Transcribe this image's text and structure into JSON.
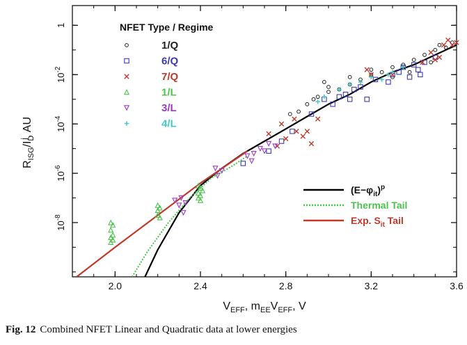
{
  "chart_data": {
    "type": "scatter",
    "xlabel": "V",
    "xlabel_sub": "EFF",
    "xlabel_mid": ", m",
    "xlabel_sub2": "EE",
    "xlabel_mid2": "V",
    "xlabel_sub3": "EFF",
    "xlabel_end": ", V",
    "ylabel": "R",
    "ylabel_sub": "ISG",
    "ylabel_mid": "/I",
    "ylabel_sub2": "D",
    "ylabel_sup": "j",
    "ylabel_end": ", AU",
    "xlim": [
      1.8,
      3.6
    ],
    "ylim_log10": [
      -10.2,
      0.8
    ],
    "log_y": true,
    "x_ticks": [
      "2.0",
      "2.4",
      "2.8",
      "3.2",
      "3.6"
    ],
    "x_tick_values": [
      2.0,
      2.4,
      2.8,
      3.2,
      3.6
    ],
    "y_ticks": [
      {
        "base": "1",
        "exp": ""
      },
      {
        "base": "10",
        "exp": "-2"
      },
      {
        "base": "10",
        "exp": "-4"
      },
      {
        "base": "10",
        "exp": "-6"
      },
      {
        "base": "10",
        "exp": "-8"
      }
    ],
    "y_tick_log10": [
      0,
      -2,
      -4,
      -6,
      -8
    ],
    "legend_title": "NFET Type / Regime",
    "series": [
      {
        "name": "1/Q",
        "symbol": "circle",
        "color": "#222222",
        "points": [
          [
            2.82,
            -3.6
          ],
          [
            2.86,
            -3.5
          ],
          [
            2.9,
            -3.2
          ],
          [
            2.95,
            -2.9
          ],
          [
            3.0,
            -2.7
          ],
          [
            3.05,
            -2.6
          ],
          [
            3.1,
            -2.4
          ],
          [
            3.15,
            -2.2
          ],
          [
            3.2,
            -2.0
          ],
          [
            3.25,
            -1.9
          ],
          [
            3.3,
            -1.7
          ],
          [
            3.35,
            -1.6
          ],
          [
            3.4,
            -1.4
          ],
          [
            3.45,
            -1.2
          ],
          [
            3.5,
            -1.0
          ],
          [
            3.55,
            -0.9
          ],
          [
            3.58,
            -0.7
          ],
          [
            3.0,
            -2.5
          ],
          [
            3.1,
            -2.1
          ],
          [
            3.2,
            -1.8
          ],
          [
            3.3,
            -2.1
          ],
          [
            2.93,
            -3.0
          ],
          [
            3.38,
            -1.9
          ],
          [
            3.48,
            -1.5
          ],
          [
            2.98,
            -2.3
          ],
          [
            3.52,
            -0.8
          ]
        ]
      },
      {
        "name": "6/Q",
        "symbol": "square",
        "color": "#3b3bb0",
        "points": [
          [
            2.6,
            -5.6
          ],
          [
            2.72,
            -5.1
          ],
          [
            2.78,
            -4.7
          ],
          [
            2.83,
            -4.3
          ],
          [
            2.92,
            -3.6
          ],
          [
            2.98,
            -3.0
          ],
          [
            3.02,
            -3.2
          ],
          [
            3.05,
            -2.9
          ],
          [
            3.08,
            -2.8
          ],
          [
            3.1,
            -3.0
          ],
          [
            3.15,
            -2.5
          ],
          [
            3.22,
            -2.2
          ],
          [
            3.3,
            -2.0
          ],
          [
            3.35,
            -1.7
          ],
          [
            3.38,
            -2.1
          ],
          [
            3.4,
            -1.6
          ],
          [
            3.42,
            -1.8
          ],
          [
            3.45,
            -1.5
          ],
          [
            3.5,
            -1.3
          ],
          [
            3.33,
            -1.9
          ],
          [
            3.28,
            -2.3
          ],
          [
            3.12,
            -2.6
          ],
          [
            3.43,
            -2.0
          ],
          [
            3.18,
            -3.0
          ]
        ]
      },
      {
        "name": "7/Q",
        "symbol": "x",
        "color": "#c0392b",
        "points": [
          [
            2.78,
            -4.0
          ],
          [
            2.8,
            -4.6
          ],
          [
            2.84,
            -3.8
          ],
          [
            2.85,
            -4.3
          ],
          [
            2.88,
            -4.5
          ],
          [
            2.9,
            -4.3
          ],
          [
            2.92,
            -4.8
          ],
          [
            2.95,
            -3.8
          ],
          [
            3.18,
            -1.8
          ],
          [
            3.2,
            -2.0
          ],
          [
            3.44,
            -1.5
          ],
          [
            3.48,
            -1.1
          ],
          [
            3.5,
            -1.4
          ],
          [
            3.52,
            -1.3
          ],
          [
            3.54,
            -0.8
          ],
          [
            3.56,
            -0.6
          ],
          [
            3.58,
            -0.8
          ],
          [
            3.6,
            -0.7
          ],
          [
            2.72,
            -4.4
          ],
          [
            2.76,
            -4.9
          ],
          [
            3.3,
            -2.0
          ]
        ]
      },
      {
        "name": "1/L",
        "symbol": "triangle-up",
        "color": "#4dc24d",
        "points": [
          [
            1.98,
            -8.0
          ],
          [
            1.98,
            -8.3
          ],
          [
            1.98,
            -8.6
          ],
          [
            1.98,
            -8.8
          ],
          [
            1.99,
            -8.1
          ],
          [
            1.99,
            -8.5
          ],
          [
            1.99,
            -8.7
          ],
          [
            2.2,
            -7.3
          ],
          [
            2.2,
            -7.5
          ],
          [
            2.2,
            -7.7
          ],
          [
            2.21,
            -7.4
          ],
          [
            2.21,
            -7.8
          ],
          [
            2.39,
            -6.5
          ],
          [
            2.39,
            -6.8
          ],
          [
            2.39,
            -7.0
          ],
          [
            2.4,
            -6.6
          ],
          [
            2.4,
            -6.9
          ],
          [
            2.4,
            -7.1
          ],
          [
            2.41,
            -6.7
          ]
        ]
      },
      {
        "name": "3/L",
        "symbol": "triangle-down",
        "color": "#9b3bc8",
        "points": [
          [
            2.28,
            -7.1
          ],
          [
            2.3,
            -7.3
          ],
          [
            2.31,
            -7.0
          ],
          [
            2.32,
            -7.6
          ],
          [
            2.33,
            -7.2
          ],
          [
            2.47,
            -5.8
          ],
          [
            2.48,
            -6.1
          ],
          [
            2.5,
            -5.9
          ],
          [
            2.62,
            -5.3
          ],
          [
            2.64,
            -5.5
          ],
          [
            2.65,
            -5.2
          ],
          [
            2.68,
            -5.0
          ],
          [
            2.7,
            -5.1
          ],
          [
            2.72,
            -4.8
          ],
          [
            2.75,
            -4.9
          ]
        ]
      },
      {
        "name": "4/L",
        "symbol": "plus",
        "color": "#45c8c8",
        "points": [
          [
            2.95,
            -3.1
          ],
          [
            2.98,
            -2.9
          ],
          [
            3.05,
            -2.6
          ],
          [
            3.1,
            -2.4
          ],
          [
            3.15,
            -2.3
          ],
          [
            3.2,
            -2.1
          ],
          [
            3.25,
            -2.2
          ],
          [
            3.28,
            -2.0
          ],
          [
            3.3,
            -1.9
          ],
          [
            3.35,
            -1.7
          ]
        ]
      }
    ],
    "curves": [
      {
        "name": "(E−φ",
        "name_sub": "it",
        "name_end": ")",
        "name_sup": "p",
        "style": "solid",
        "color": "#000000",
        "points": [
          [
            2.14,
            -10.2
          ],
          [
            2.2,
            -9.1
          ],
          [
            2.3,
            -7.6
          ],
          [
            2.4,
            -6.5
          ],
          [
            2.5,
            -5.8
          ],
          [
            2.6,
            -5.2
          ],
          [
            2.7,
            -4.7
          ],
          [
            2.8,
            -4.2
          ],
          [
            2.9,
            -3.7
          ],
          [
            3.0,
            -3.2
          ],
          [
            3.1,
            -2.8
          ],
          [
            3.2,
            -2.3
          ],
          [
            3.3,
            -1.9
          ],
          [
            3.4,
            -1.6
          ],
          [
            3.5,
            -1.2
          ],
          [
            3.6,
            -0.8
          ]
        ]
      },
      {
        "name": "Thermal Tail",
        "style": "dotted",
        "color": "#4dc24d",
        "points": [
          [
            2.08,
            -10.2
          ],
          [
            2.15,
            -9.2
          ],
          [
            2.25,
            -8.0
          ],
          [
            2.35,
            -7.0
          ],
          [
            2.45,
            -6.2
          ],
          [
            2.55,
            -5.7
          ],
          [
            2.62,
            -5.3
          ]
        ]
      },
      {
        "name": "Exp. S",
        "name_sub": "it",
        "name_end": " Tail",
        "style": "solid",
        "color": "#c0392b",
        "points": [
          [
            1.82,
            -10.2
          ],
          [
            2.0,
            -9.0
          ],
          [
            2.2,
            -7.7
          ],
          [
            2.4,
            -6.4
          ],
          [
            2.62,
            -5.1
          ]
        ]
      }
    ]
  },
  "caption": {
    "label": "Fig. 12",
    "text": "Combined NFET Linear and Quadratic data at lower energies"
  }
}
